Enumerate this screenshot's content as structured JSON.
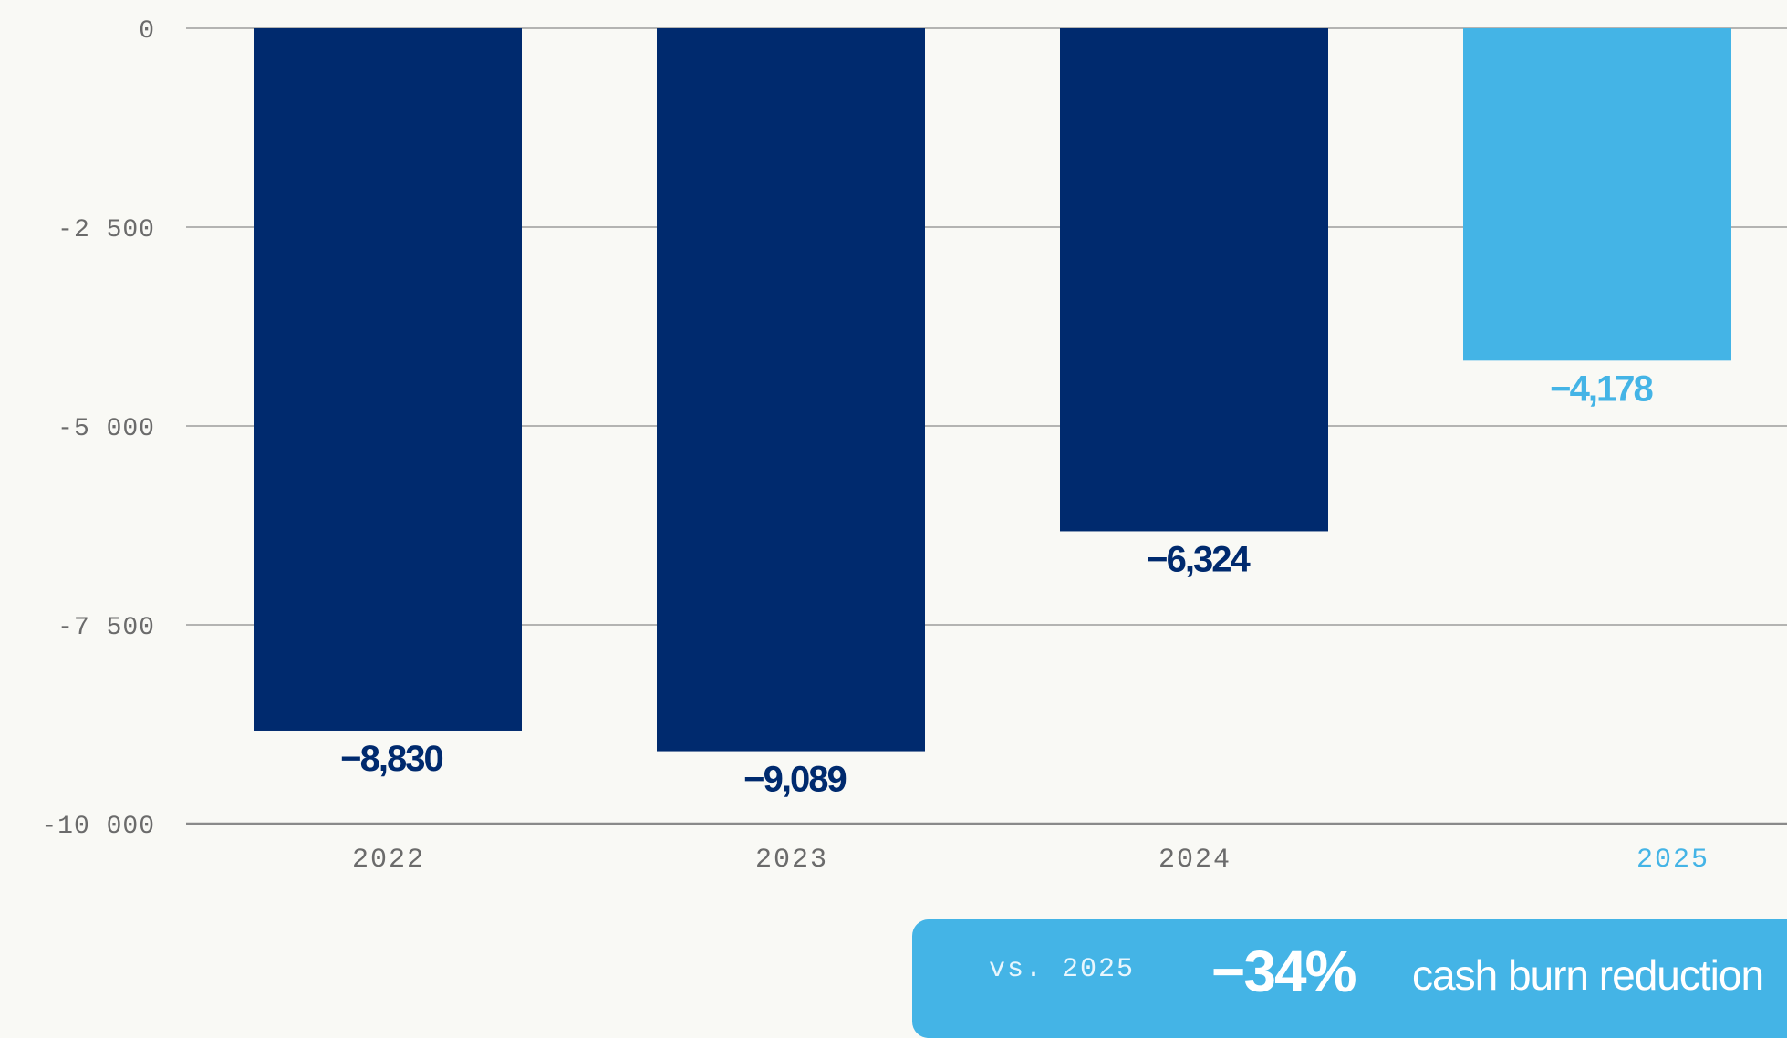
{
  "chart_data": {
    "type": "bar",
    "categories": [
      "2022",
      "2023",
      "2024",
      "2025"
    ],
    "values": [
      -8830,
      -9089,
      -6324,
      -4178
    ],
    "value_labels": [
      "−8,830",
      "−9,089",
      "−6,324",
      "−4,178"
    ],
    "ylim": [
      -10000,
      0
    ],
    "yticks": [
      0,
      -2500,
      -5000,
      -7500,
      -10000
    ],
    "ytick_labels": [
      "0",
      "-2 500",
      "-5 000",
      "-7 500",
      "-10 000"
    ],
    "grid": true,
    "colors": {
      "historical": "#002a6e",
      "highlight": "#44b4e6",
      "axis_text": "#6b6b6b",
      "grid": "#8a8a8a"
    },
    "highlight_category": "2025"
  },
  "callout": {
    "prefix": "vs. 2025",
    "value": "−34%",
    "text": "cash burn reduction",
    "color": "#44b4e6"
  }
}
